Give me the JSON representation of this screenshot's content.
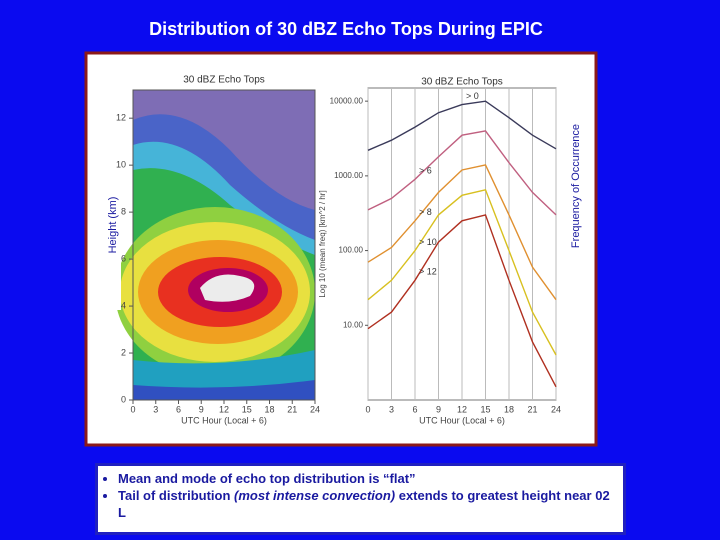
{
  "slide": {
    "title": "Distribution of 30 dBZ Echo Tops During EPIC",
    "bullets": [
      [
        "Mean and mode of echo top distribution is “flat”"
      ],
      [
        "Tail of distribution ",
        "(most intense convection)",
        " extends to greatest height near 02 L"
      ]
    ]
  },
  "chart_data": [
    {
      "type": "contour",
      "title": "30 dBZ Echo Tops",
      "ylabel": "Height (km)",
      "xlabel": "UTC Hour (Local + 6)",
      "xlim": [
        0,
        24
      ],
      "xticks": [
        0,
        3,
        6,
        9,
        12,
        15,
        18,
        21,
        24
      ],
      "ylim": [
        0,
        13.2
      ],
      "yticks": [
        0,
        2,
        4,
        6,
        8,
        10,
        12
      ]
    },
    {
      "type": "line",
      "title": "30 dBZ Echo Tops",
      "ylabel": "Log 10 (mean freq) [km^2 / hr]",
      "side_label": "Frequency of Occurrence",
      "xlabel": "UTC Hour (Local + 6)",
      "log": true,
      "grid": true,
      "x": [
        0,
        3,
        6,
        9,
        12,
        15,
        18,
        21,
        24
      ],
      "xlim": [
        0,
        24
      ],
      "xticks": [
        0,
        3,
        6,
        9,
        12,
        15,
        18,
        21,
        24
      ],
      "ylim": [
        1,
        15000
      ],
      "yticks": [
        {
          "value": 10,
          "label": "10.00"
        },
        {
          "value": 100,
          "label": "100.00"
        },
        {
          "value": 1000,
          "label": "1000.00"
        },
        {
          "value": 10000,
          "label": "10000.00"
        }
      ],
      "series": [
        {
          "name": "> 0",
          "color": "#3a3a5a",
          "values": [
            2200,
            3000,
            4500,
            7000,
            9000,
            10000,
            6000,
            3500,
            2300
          ]
        },
        {
          "name": "> 6",
          "color": "#c06080",
          "values": [
            350,
            500,
            900,
            1800,
            3500,
            4000,
            1500,
            600,
            300
          ]
        },
        {
          "name": "> 8",
          "color": "#e09030",
          "values": [
            70,
            110,
            250,
            600,
            1200,
            1400,
            300,
            60,
            22
          ]
        },
        {
          "name": "> 10",
          "color": "#d8c020",
          "values": [
            22,
            40,
            100,
            300,
            550,
            650,
            100,
            15,
            4
          ]
        },
        {
          "name": "> 12",
          "color": "#b03020",
          "values": [
            9,
            15,
            40,
            130,
            250,
            300,
            40,
            6,
            1.5
          ]
        }
      ]
    }
  ]
}
